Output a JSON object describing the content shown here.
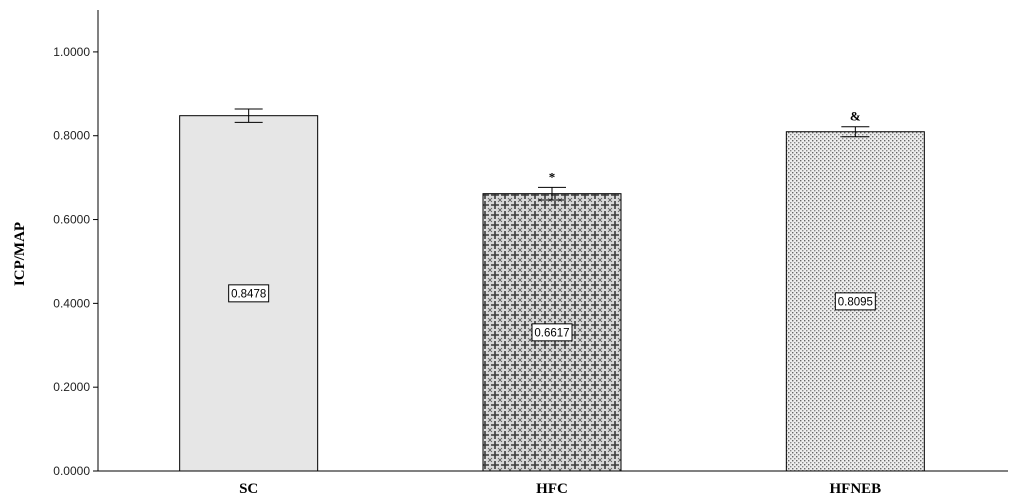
{
  "chart_data": {
    "type": "bar",
    "title": "",
    "xlabel": "",
    "ylabel": "ICP/MAP",
    "ylim": [
      0,
      1.1
    ],
    "yticks": [
      "0.0000",
      "0.2000",
      "0.4000",
      "0.6000",
      "0.8000",
      "1.0000"
    ],
    "ytick_values": [
      0,
      0.2,
      0.4,
      0.6,
      0.8,
      1.0
    ],
    "categories": [
      "SC",
      "HFC",
      "HFNEB"
    ],
    "values": [
      0.8478,
      0.6617,
      0.8095
    ],
    "data_labels": [
      "0.8478",
      "0.6617",
      "0.8095"
    ],
    "error": [
      0.016,
      0.015,
      0.012
    ],
    "annotations": [
      "",
      "*",
      "&"
    ],
    "patterns": [
      "solid",
      "crosshatch-plus",
      "dots"
    ],
    "bar_fill": "#e6e6e6",
    "bar_stroke": "#000000",
    "grid": false,
    "legend": "none"
  }
}
